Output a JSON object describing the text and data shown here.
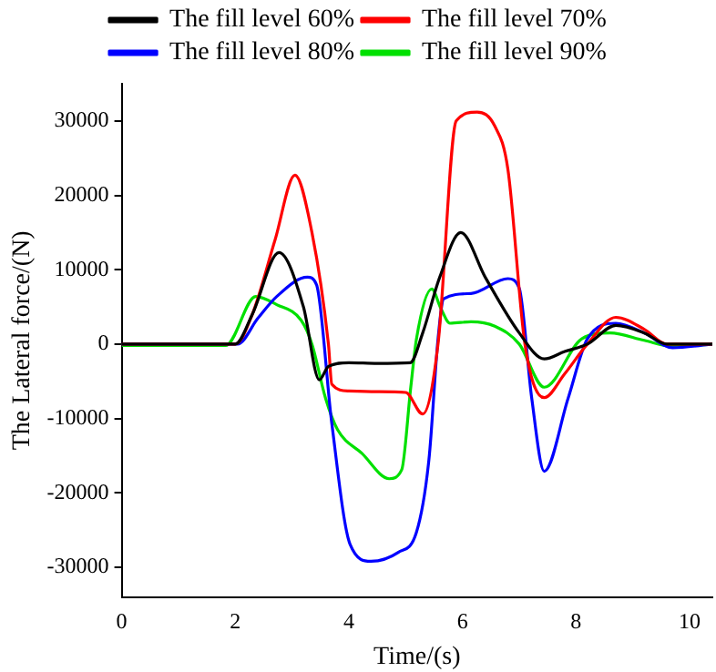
{
  "chart_data": {
    "type": "line",
    "xlabel": "Time/(s)",
    "ylabel": "The Lateral force/(N)",
    "legend": "top",
    "grid": false,
    "marker": "none",
    "line_style": "solid",
    "xlim": [
      0,
      10.4
    ],
    "xticks": [
      0,
      2,
      4,
      6,
      8,
      10
    ],
    "ylim": [
      -34000,
      35000
    ],
    "yticks": [
      -30000,
      -20000,
      -10000,
      0,
      10000,
      20000,
      30000
    ],
    "series": [
      {
        "name": "The fill level 60%",
        "color": "#000000",
        "x": [
          0,
          2.0,
          2.3,
          2.77,
          3.2,
          3.48,
          3.64,
          4.0,
          4.5,
          5.08,
          5.3,
          5.6,
          5.97,
          6.4,
          7.0,
          7.44,
          7.8,
          8.2,
          8.7,
          9.2,
          9.6,
          10.4
        ],
        "values": [
          0,
          0,
          4000,
          12300,
          5000,
          -4800,
          -3000,
          -2500,
          -2600,
          -2500,
          1500,
          9000,
          15000,
          9000,
          1500,
          -2000,
          -1000,
          0,
          2500,
          1500,
          0,
          0
        ]
      },
      {
        "name": "The fill level 70%",
        "color": "#ff0000",
        "x": [
          0,
          2.0,
          2.3,
          2.7,
          3.05,
          3.35,
          3.64,
          3.7,
          4.0,
          4.5,
          5.0,
          5.3,
          5.57,
          5.89,
          6.26,
          6.57,
          6.8,
          7.1,
          7.44,
          7.8,
          8.2,
          8.7,
          9.2,
          9.6,
          10.4
        ],
        "values": [
          0,
          0,
          4000,
          14000,
          22700,
          15000,
          0,
          -5400,
          -6300,
          -6400,
          -6500,
          -9400,
          0,
          30000,
          31200,
          29300,
          23500,
          0,
          -7200,
          -4000,
          0,
          3600,
          2000,
          0,
          0
        ]
      },
      {
        "name": "The fill level 80%",
        "color": "#0000ff",
        "x": [
          0,
          2.04,
          2.4,
          2.73,
          3.27,
          3.43,
          3.7,
          4.02,
          4.39,
          4.87,
          5.19,
          5.41,
          5.57,
          5.67,
          6.15,
          6.8,
          7.0,
          7.22,
          7.44,
          7.86,
          8.2,
          8.7,
          9.2,
          9.7,
          10.4
        ],
        "values": [
          0,
          0,
          3500,
          6400,
          9000,
          8000,
          -10700,
          -26900,
          -29200,
          -28000,
          -25300,
          -15500,
          700,
          6100,
          6800,
          8800,
          7500,
          -7300,
          -17100,
          -7300,
          700,
          2800,
          1500,
          -500,
          0
        ]
      },
      {
        "name": "The fill level 90%",
        "color": "#00e000",
        "x": [
          0,
          1.83,
          2.36,
          2.73,
          3.16,
          3.35,
          3.59,
          3.8,
          4.23,
          4.71,
          4.93,
          5.09,
          5.19,
          5.46,
          5.62,
          5.78,
          6.15,
          6.57,
          7.0,
          7.44,
          8.1,
          8.6,
          9.2,
          9.7,
          10.4
        ],
        "values": [
          -200,
          -200,
          6400,
          5300,
          3200,
          0,
          -7300,
          -11500,
          -14700,
          -18100,
          -16900,
          -5800,
          700,
          7400,
          4800,
          2800,
          3000,
          2400,
          0,
          -5800,
          700,
          1500,
          500,
          -300,
          0
        ]
      }
    ]
  }
}
